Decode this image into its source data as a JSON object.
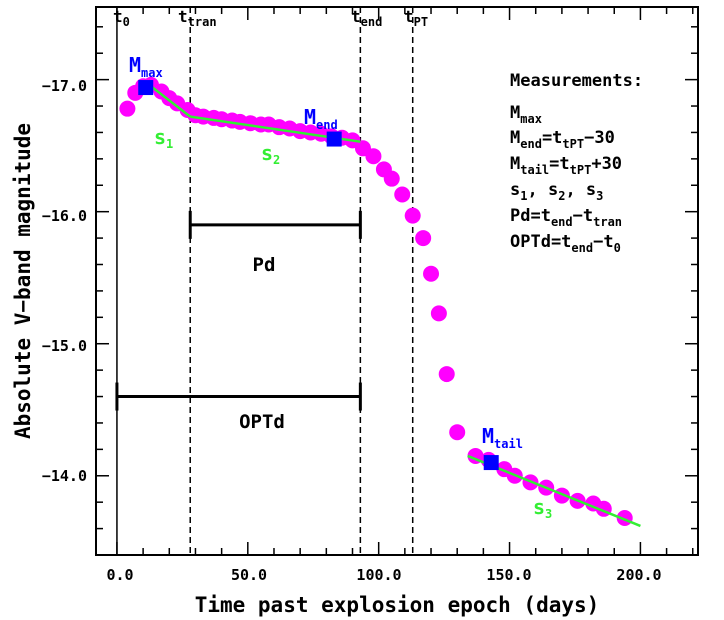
{
  "chart_data": {
    "type": "scatter",
    "title": "",
    "xlabel": "Time past explosion epoch (days)",
    "ylabel": "Absolute V−band magnitude",
    "xlim": [
      -8,
      222
    ],
    "ylim": [
      -13.4,
      -17.55
    ],
    "y_inverted": true,
    "xticks": [
      0,
      50,
      100,
      150,
      200
    ],
    "xtick_labels": [
      "0.0",
      "50.0",
      "100.0",
      "150.0",
      "200.0"
    ],
    "yticks": [
      -17,
      -16,
      -15,
      -14
    ],
    "ytick_labels": [
      "−17.0",
      "−16.0",
      "−15.0",
      "−14.0"
    ],
    "grid": false,
    "point_color": "#ff00ff",
    "marker_color": "#0000ff",
    "fit_color": "#33ee33",
    "points": [
      [
        4,
        -16.78
      ],
      [
        7,
        -16.9
      ],
      [
        10,
        -16.95
      ],
      [
        13,
        -16.96
      ],
      [
        17,
        -16.91
      ],
      [
        20,
        -16.86
      ],
      [
        23,
        -16.82
      ],
      [
        27,
        -16.77
      ],
      [
        30,
        -16.73
      ],
      [
        33,
        -16.72
      ],
      [
        37,
        -16.71
      ],
      [
        40,
        -16.7
      ],
      [
        44,
        -16.69
      ],
      [
        47,
        -16.68
      ],
      [
        51,
        -16.67
      ],
      [
        55,
        -16.66
      ],
      [
        58,
        -16.66
      ],
      [
        62,
        -16.64
      ],
      [
        66,
        -16.63
      ],
      [
        70,
        -16.61
      ],
      [
        74,
        -16.6
      ],
      [
        78,
        -16.59
      ],
      [
        82,
        -16.57
      ],
      [
        86,
        -16.56
      ],
      [
        90,
        -16.54
      ],
      [
        94,
        -16.48
      ],
      [
        98,
        -16.42
      ],
      [
        102,
        -16.32
      ],
      [
        105,
        -16.25
      ],
      [
        109,
        -16.13
      ],
      [
        113,
        -15.97
      ],
      [
        117,
        -15.8
      ],
      [
        120,
        -15.53
      ],
      [
        123,
        -15.23
      ],
      [
        126,
        -14.77
      ],
      [
        130,
        -14.33
      ],
      [
        137,
        -14.15
      ],
      [
        142,
        -14.12
      ],
      [
        148,
        -14.05
      ],
      [
        152,
        -14.0
      ],
      [
        158,
        -13.95
      ],
      [
        164,
        -13.91
      ],
      [
        170,
        -13.85
      ],
      [
        176,
        -13.81
      ],
      [
        182,
        -13.79
      ],
      [
        186,
        -13.75
      ],
      [
        194,
        -13.68
      ]
    ],
    "fit_segments": [
      {
        "name": "s1",
        "x": [
          13,
          28
        ],
        "y": [
          -16.95,
          -16.72
        ]
      },
      {
        "name": "s2",
        "x": [
          28,
          93
        ],
        "y": [
          -16.72,
          -16.53
        ]
      },
      {
        "name": "s3",
        "x": [
          134,
          200
        ],
        "y": [
          -14.15,
          -13.62
        ]
      }
    ],
    "markers": [
      {
        "name": "M_max",
        "x": 11,
        "y": -16.94
      },
      {
        "name": "M_end",
        "x": 83,
        "y": -16.55
      },
      {
        "name": "M_tail",
        "x": 143,
        "y": -14.1
      }
    ],
    "vlines": [
      {
        "name": "t0",
        "x": 0,
        "style": "solid"
      },
      {
        "name": "t_tran",
        "x": 28,
        "style": "dashed"
      },
      {
        "name": "t_end",
        "x": 93,
        "style": "dashed"
      },
      {
        "name": "t_PT",
        "x": 113,
        "style": "dashed"
      }
    ],
    "spans": [
      {
        "name": "Pd",
        "x": [
          28,
          93
        ],
        "y": -15.9
      },
      {
        "name": "OPTd",
        "x": [
          0,
          93
        ],
        "y": -14.6
      }
    ]
  },
  "labels": {
    "t0": {
      "main": "t",
      "sub": "0"
    },
    "t_tran": {
      "main": "t",
      "sub": "tran"
    },
    "t_end": {
      "main": "t",
      "sub": "end"
    },
    "t_pt": {
      "main": "t",
      "sub": "PT"
    },
    "m_max": {
      "main": "M",
      "sub": "max"
    },
    "m_end": {
      "main": "M",
      "sub": "end"
    },
    "m_tail": {
      "main": "M",
      "sub": "tail"
    },
    "s1": {
      "main": "s",
      "sub": "1"
    },
    "s2": {
      "main": "s",
      "sub": "2"
    },
    "s3": {
      "main": "s",
      "sub": "3"
    },
    "pd": "Pd",
    "optd": "OPTd"
  },
  "measurements": {
    "title": "Measurements:",
    "m_max": {
      "main": "M",
      "sub": "max"
    },
    "m_end": {
      "a": "M",
      "a_sub": "end",
      "b": "=t",
      "b_sub": "tPT",
      "c": "−30"
    },
    "m_tail": {
      "a": "M",
      "a_sub": "tail",
      "b": "=t",
      "b_sub": "tPT",
      "c": "+30"
    },
    "slopes": {
      "a": "s",
      "a_sub": "1",
      "b": ",  s",
      "b_sub": "2",
      "c": ",  s",
      "c_sub": "3"
    },
    "pd": {
      "a": "Pd=t",
      "a_sub": "end",
      "b": "−t",
      "b_sub": "tran"
    },
    "optd": {
      "a": "OPTd=t",
      "a_sub": "end",
      "b": "−t",
      "b_sub": "0"
    }
  }
}
